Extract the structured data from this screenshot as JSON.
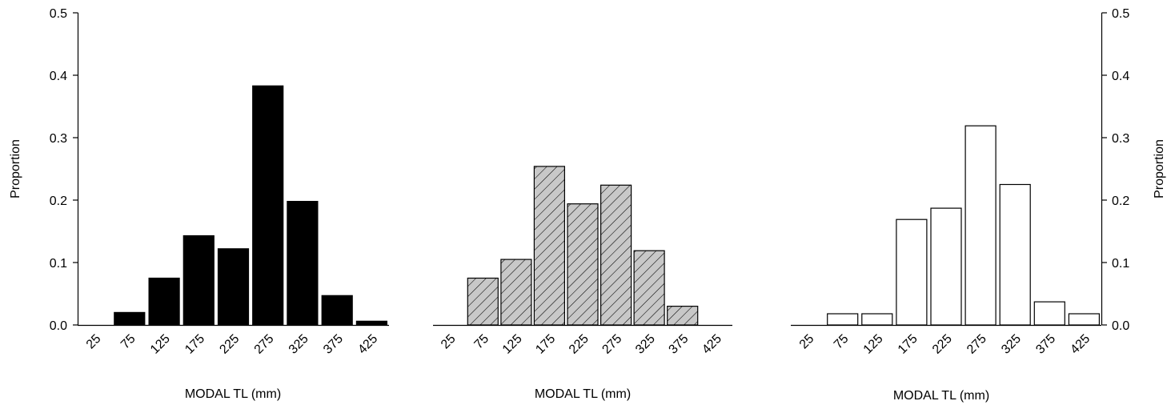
{
  "chart_data": [
    {
      "type": "bar",
      "xlabel": "MODAL TL (mm)",
      "ylabel": "Proportion",
      "categories": [
        "25",
        "75",
        "125",
        "175",
        "225",
        "275",
        "325",
        "375",
        "425"
      ],
      "values": [
        0.0,
        0.02,
        0.075,
        0.143,
        0.122,
        0.383,
        0.198,
        0.047,
        0.006
      ],
      "ylim": [
        0,
        0.5
      ],
      "yticks": [
        "0.0",
        "0.1",
        "0.2",
        "0.3",
        "0.4",
        "0.5"
      ],
      "y_axis_side": "left",
      "fill": "solid black",
      "colors": {
        "fill": "#000000",
        "edge": "#000000"
      },
      "grid": false
    },
    {
      "type": "bar",
      "xlabel": "MODAL TL (mm)",
      "ylabel": "",
      "categories": [
        "25",
        "75",
        "125",
        "175",
        "225",
        "275",
        "325",
        "375",
        "425"
      ],
      "values": [
        0.0,
        0.075,
        0.105,
        0.254,
        0.194,
        0.224,
        0.119,
        0.03,
        0.0
      ],
      "ylim": [
        0,
        0.5
      ],
      "yticks": [],
      "y_axis_side": "none",
      "fill": "gray with diagonal hatching",
      "colors": {
        "fill": "#c8c8c8",
        "edge": "#000000",
        "hatch": "#000000"
      },
      "grid": false
    },
    {
      "type": "bar",
      "xlabel": "MODAL TL (mm)",
      "ylabel": "Proportion",
      "categories": [
        "25",
        "75",
        "125",
        "175",
        "225",
        "275",
        "325",
        "375",
        "425"
      ],
      "values": [
        0.0,
        0.018,
        0.018,
        0.169,
        0.187,
        0.319,
        0.225,
        0.037,
        0.018
      ],
      "ylim": [
        0,
        0.5
      ],
      "yticks": [
        "0.0",
        "0.1",
        "0.2",
        "0.3",
        "0.4",
        "0.5"
      ],
      "y_axis_side": "right",
      "fill": "white (outlined)",
      "colors": {
        "fill": "#ffffff",
        "edge": "#000000"
      },
      "grid": false
    }
  ]
}
